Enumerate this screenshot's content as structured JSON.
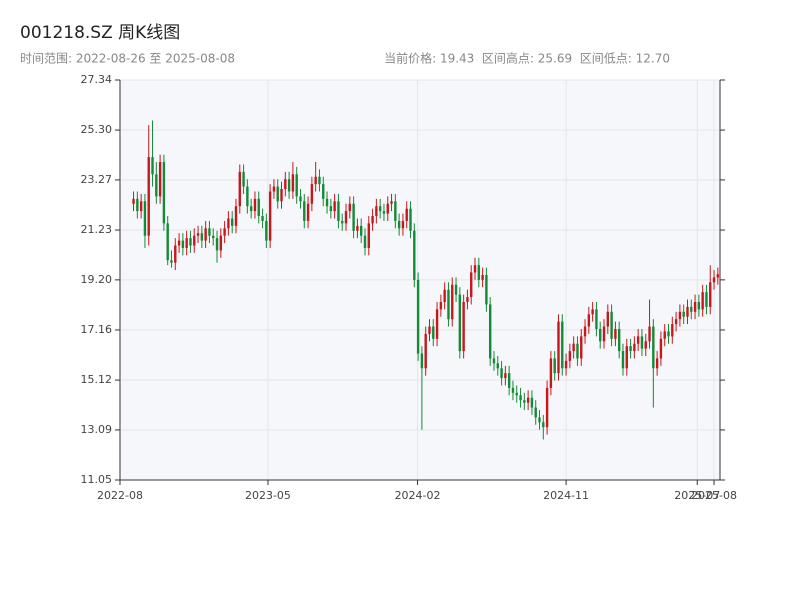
{
  "chart_data": {
    "type": "candlestick",
    "title": "001218.SZ 周K线图",
    "subtitle": "时间范围: 2022-08-26 至 2025-08-08",
    "stats": "当前价格: 19.43  区间高点: 25.69  区间低点: 12.70",
    "up_color": "#c8161d",
    "down_color": "#138a36",
    "grid": true,
    "xlim": [
      "2022-08-01",
      "2025-08-12"
    ],
    "xticks": [
      {
        "value": "2022-08-01",
        "label": "2022-08"
      },
      {
        "value": "2023-05-01",
        "label": "2023-05"
      },
      {
        "value": "2024-02-01",
        "label": "2024-02"
      },
      {
        "value": "2024-11-01",
        "label": "2024-11"
      },
      {
        "value": "2025-07-01",
        "label": "2025-07"
      },
      {
        "value": "2025-08-01",
        "label": "2025-08"
      }
    ],
    "ylim": [
      11.05,
      27.34
    ],
    "yticks": [
      {
        "value": 11.05,
        "label": "11.05"
      },
      13.09,
      15.12,
      17.16,
      {
        "value": 19.2,
        "label": "19.20"
      },
      21.23,
      23.27,
      {
        "value": 25.3,
        "label": "25.30"
      },
      27.34
    ],
    "x": [
      "2022-08-26",
      "2022-09-02",
      "2022-09-09",
      "2022-09-16",
      "2022-09-23",
      "2022-09-30",
      "2022-10-07",
      "2022-10-14",
      "2022-10-21",
      "2022-10-28",
      "2022-11-04",
      "2022-11-11",
      "2022-11-18",
      "2022-11-25",
      "2022-12-02",
      "2022-12-09",
      "2022-12-16",
      "2022-12-23",
      "2022-12-30",
      "2023-01-06",
      "2023-01-13",
      "2023-01-20",
      "2023-01-27",
      "2023-02-03",
      "2023-02-10",
      "2023-02-17",
      "2023-02-24",
      "2023-03-03",
      "2023-03-10",
      "2023-03-17",
      "2023-03-24",
      "2023-03-31",
      "2023-04-07",
      "2023-04-14",
      "2023-04-21",
      "2023-04-28",
      "2023-05-05",
      "2023-05-12",
      "2023-05-19",
      "2023-05-26",
      "2023-06-02",
      "2023-06-09",
      "2023-06-16",
      "2023-06-23",
      "2023-06-30",
      "2023-07-07",
      "2023-07-14",
      "2023-07-21",
      "2023-07-28",
      "2023-08-04",
      "2023-08-11",
      "2023-08-18",
      "2023-08-25",
      "2023-09-01",
      "2023-09-08",
      "2023-09-15",
      "2023-09-22",
      "2023-09-29",
      "2023-10-06",
      "2023-10-13",
      "2023-10-20",
      "2023-10-27",
      "2023-11-03",
      "2023-11-10",
      "2023-11-17",
      "2023-11-24",
      "2023-12-01",
      "2023-12-08",
      "2023-12-15",
      "2023-12-22",
      "2023-12-29",
      "2024-01-05",
      "2024-01-12",
      "2024-01-19",
      "2024-01-26",
      "2024-02-02",
      "2024-02-09",
      "2024-02-16",
      "2024-02-23",
      "2024-03-01",
      "2024-03-08",
      "2024-03-15",
      "2024-03-22",
      "2024-03-29",
      "2024-04-05",
      "2024-04-12",
      "2024-04-19",
      "2024-04-26",
      "2024-05-03",
      "2024-05-10",
      "2024-05-17",
      "2024-05-24",
      "2024-05-31",
      "2024-06-07",
      "2024-06-14",
      "2024-06-21",
      "2024-06-28",
      "2024-07-05",
      "2024-07-12",
      "2024-07-19",
      "2024-07-26",
      "2024-08-02",
      "2024-08-09",
      "2024-08-16",
      "2024-08-23",
      "2024-08-30",
      "2024-09-06",
      "2024-09-13",
      "2024-09-20",
      "2024-09-27",
      "2024-10-04",
      "2024-10-11",
      "2024-10-18",
      "2024-10-25",
      "2024-11-01",
      "2024-11-08",
      "2024-11-15",
      "2024-11-22",
      "2024-11-29",
      "2024-12-06",
      "2024-12-13",
      "2024-12-20",
      "2024-12-27",
      "2025-01-03",
      "2025-01-10",
      "2025-01-17",
      "2025-01-24",
      "2025-01-31",
      "2025-02-07",
      "2025-02-14",
      "2025-02-21",
      "2025-02-28",
      "2025-03-07",
      "2025-03-14",
      "2025-03-21",
      "2025-03-28",
      "2025-04-04",
      "2025-04-11",
      "2025-04-18",
      "2025-04-25",
      "2025-05-02",
      "2025-05-09",
      "2025-05-16",
      "2025-05-23",
      "2025-05-30",
      "2025-06-06",
      "2025-06-13",
      "2025-06-20",
      "2025-06-27",
      "2025-07-04",
      "2025-07-11",
      "2025-07-18",
      "2025-07-25",
      "2025-08-01",
      "2025-08-08"
    ],
    "open": [
      22.3,
      22.5,
      22.0,
      22.4,
      21.0,
      24.2,
      23.5,
      22.6,
      24.0,
      21.5,
      20.0,
      19.9,
      20.6,
      20.8,
      20.5,
      20.9,
      20.6,
      21.0,
      21.1,
      20.8,
      21.3,
      21.0,
      20.9,
      20.4,
      21.0,
      21.3,
      21.7,
      21.4,
      22.2,
      23.6,
      23.0,
      22.2,
      22.0,
      22.5,
      21.8,
      21.6,
      20.8,
      22.8,
      23.0,
      22.4,
      22.9,
      23.3,
      22.8,
      23.5,
      22.6,
      22.4,
      21.6,
      22.3,
      23.1,
      23.4,
      23.1,
      22.5,
      22.2,
      22.0,
      22.4,
      21.6,
      21.5,
      22.0,
      22.3,
      21.2,
      21.4,
      21.0,
      20.5,
      21.5,
      21.8,
      22.2,
      22.0,
      21.9,
      22.3,
      22.4,
      21.6,
      21.3,
      21.6,
      22.1,
      21.2,
      19.2,
      16.2,
      15.6,
      17.0,
      17.3,
      16.8,
      18.0,
      18.3,
      18.8,
      17.6,
      19.0,
      18.6,
      16.3,
      18.3,
      18.5,
      19.5,
      19.8,
      19.2,
      19.4,
      18.2,
      16.0,
      15.8,
      15.6,
      15.2,
      15.4,
      14.8,
      14.6,
      14.5,
      14.3,
      14.2,
      14.4,
      14.0,
      13.6,
      13.4,
      13.2,
      14.8,
      16.0,
      15.4,
      17.5,
      15.6,
      15.9,
      16.3,
      16.6,
      16.0,
      16.9,
      17.3,
      17.8,
      18.0,
      17.2,
      16.7,
      17.3,
      17.9,
      16.8,
      17.2,
      16.3,
      15.6,
      16.5,
      16.3,
      16.6,
      16.9,
      16.4,
      16.7,
      17.3,
      15.6,
      16.0,
      16.8,
      17.1,
      16.9,
      17.4,
      17.6,
      17.9,
      17.7,
      18.1,
      17.9,
      18.3,
      18.0,
      18.7,
      18.1,
      19.1,
      19.3
    ],
    "high": [
      22.8,
      22.8,
      22.7,
      22.7,
      25.5,
      25.69,
      24.0,
      24.3,
      24.3,
      21.8,
      20.4,
      20.9,
      21.1,
      21.1,
      21.2,
      21.2,
      21.3,
      21.4,
      21.4,
      21.6,
      21.6,
      21.3,
      21.2,
      21.3,
      21.6,
      22.0,
      22.0,
      22.5,
      23.9,
      23.9,
      23.3,
      22.5,
      22.8,
      22.8,
      22.1,
      21.9,
      23.1,
      23.3,
      23.3,
      23.2,
      23.6,
      23.6,
      24.0,
      23.8,
      22.9,
      22.7,
      22.6,
      23.4,
      24.0,
      23.7,
      23.4,
      22.8,
      22.5,
      22.7,
      22.7,
      21.9,
      22.3,
      22.6,
      22.6,
      21.7,
      21.7,
      21.3,
      21.8,
      22.1,
      22.5,
      22.5,
      22.3,
      22.6,
      22.7,
      22.7,
      21.9,
      21.9,
      22.4,
      22.4,
      21.5,
      19.5,
      16.5,
      17.3,
      17.6,
      17.6,
      18.3,
      18.6,
      19.1,
      19.1,
      19.3,
      19.3,
      18.9,
      18.6,
      18.8,
      19.8,
      20.1,
      20.1,
      19.7,
      19.7,
      18.5,
      16.3,
      16.1,
      15.9,
      15.7,
      15.7,
      15.1,
      14.9,
      14.8,
      14.6,
      14.7,
      14.7,
      14.3,
      13.9,
      13.7,
      15.1,
      16.3,
      16.3,
      17.8,
      17.8,
      16.2,
      16.6,
      16.9,
      16.9,
      17.2,
      17.6,
      18.1,
      18.3,
      18.3,
      17.5,
      17.6,
      18.2,
      18.2,
      17.5,
      17.5,
      16.6,
      16.8,
      16.8,
      16.9,
      17.2,
      17.2,
      17.0,
      18.4,
      17.6,
      16.3,
      17.1,
      17.4,
      17.4,
      17.7,
      17.9,
      18.2,
      18.2,
      18.4,
      18.4,
      18.6,
      18.6,
      19.0,
      19.0,
      19.8,
      19.6,
      19.7
    ],
    "low": [
      22.0,
      21.7,
      21.7,
      20.5,
      20.6,
      23.0,
      22.3,
      22.3,
      21.2,
      19.8,
      19.7,
      19.6,
      20.3,
      20.2,
      20.2,
      20.3,
      20.3,
      20.7,
      20.5,
      20.5,
      20.7,
      20.6,
      19.9,
      20.1,
      20.7,
      21.0,
      21.1,
      21.1,
      21.9,
      22.7,
      21.9,
      21.7,
      21.7,
      21.5,
      21.3,
      20.5,
      20.5,
      22.5,
      22.1,
      22.1,
      22.6,
      22.5,
      22.5,
      22.3,
      22.1,
      21.3,
      21.3,
      22.0,
      22.8,
      22.8,
      22.2,
      21.9,
      21.7,
      21.7,
      21.3,
      21.2,
      21.2,
      21.7,
      20.9,
      20.9,
      20.7,
      20.2,
      20.2,
      21.2,
      21.5,
      21.7,
      21.6,
      21.6,
      22.0,
      21.3,
      21.0,
      21.0,
      21.3,
      20.9,
      18.9,
      15.9,
      13.1,
      15.3,
      16.7,
      16.5,
      16.5,
      17.7,
      18.0,
      17.3,
      17.3,
      18.3,
      16.0,
      16.0,
      18.0,
      18.2,
      19.2,
      18.9,
      18.9,
      17.9,
      15.7,
      15.5,
      15.3,
      14.9,
      14.9,
      14.5,
      14.3,
      14.2,
      14.0,
      13.9,
      13.9,
      13.7,
      13.3,
      13.1,
      12.7,
      12.9,
      14.5,
      15.1,
      15.1,
      15.3,
      15.3,
      15.6,
      16.0,
      15.7,
      15.7,
      16.6,
      17.0,
      17.5,
      16.9,
      16.4,
      16.4,
      17.0,
      16.5,
      16.5,
      16.0,
      15.3,
      15.3,
      16.0,
      16.0,
      16.3,
      16.1,
      16.1,
      16.4,
      14.0,
      15.3,
      15.7,
      16.5,
      16.6,
      16.6,
      17.1,
      17.3,
      17.4,
      17.4,
      17.6,
      17.6,
      17.7,
      17.7,
      17.8,
      17.8,
      18.8,
      19.0
    ],
    "close": [
      22.5,
      22.0,
      22.4,
      21.0,
      24.2,
      23.5,
      22.6,
      24.0,
      21.5,
      20.0,
      19.9,
      20.6,
      20.8,
      20.5,
      20.9,
      20.6,
      21.0,
      21.1,
      20.8,
      21.3,
      21.0,
      20.9,
      20.4,
      21.0,
      21.3,
      21.7,
      21.4,
      22.2,
      23.6,
      23.0,
      22.2,
      22.0,
      22.5,
      21.8,
      21.6,
      20.8,
      22.8,
      23.0,
      22.4,
      22.9,
      23.3,
      22.8,
      23.5,
      22.6,
      22.4,
      21.6,
      22.3,
      23.1,
      23.4,
      23.1,
      22.5,
      22.2,
      22.0,
      22.4,
      21.6,
      21.5,
      22.0,
      22.3,
      21.2,
      21.4,
      21.0,
      20.5,
      21.5,
      21.8,
      22.2,
      22.0,
      21.9,
      22.3,
      22.4,
      21.6,
      21.3,
      21.6,
      22.1,
      21.2,
      19.2,
      16.2,
      15.6,
      17.0,
      17.3,
      16.8,
      18.0,
      18.3,
      18.8,
      17.6,
      19.0,
      18.6,
      16.3,
      18.3,
      18.5,
      19.5,
      19.8,
      19.2,
      19.4,
      18.2,
      16.0,
      15.8,
      15.6,
      15.2,
      15.4,
      14.8,
      14.6,
      14.5,
      14.3,
      14.2,
      14.4,
      14.0,
      13.6,
      13.4,
      13.2,
      14.8,
      16.0,
      15.4,
      17.5,
      15.6,
      15.9,
      16.3,
      16.6,
      16.0,
      16.9,
      17.3,
      17.8,
      18.0,
      17.2,
      16.7,
      17.3,
      17.9,
      16.8,
      17.2,
      16.3,
      15.6,
      16.5,
      16.3,
      16.6,
      16.9,
      16.4,
      16.7,
      17.3,
      15.6,
      16.0,
      16.8,
      17.1,
      16.9,
      17.4,
      17.6,
      17.9,
      17.7,
      18.1,
      17.9,
      18.3,
      18.0,
      18.7,
      18.1,
      19.1,
      19.3,
      19.43
    ]
  }
}
